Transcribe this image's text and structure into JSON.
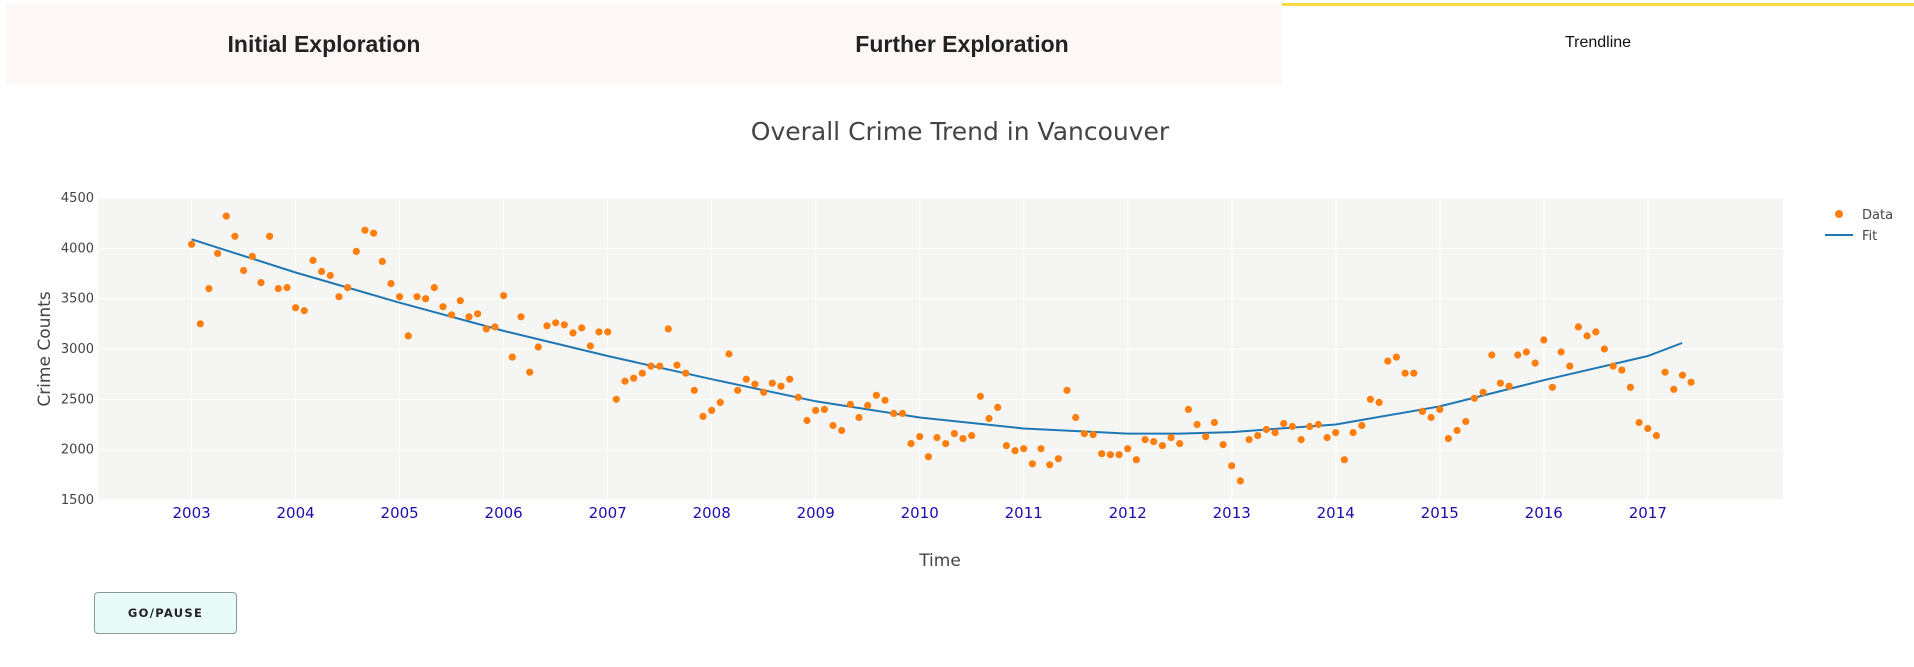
{
  "tabs": [
    {
      "label": "Initial Exploration",
      "active": false
    },
    {
      "label": "Further Exploration",
      "active": false
    },
    {
      "label": "Trendline",
      "active": true
    }
  ],
  "controls": {
    "go_pause_label": "GO/PAUSE"
  },
  "colors": {
    "data": "#ff7f0e",
    "fit": "#1f77b4",
    "active_tab_accent": "#f7d940",
    "year_ticks": "#1a0dab"
  },
  "chart_data": {
    "type": "scatter",
    "title": "Overall Crime Trend in Vancouver",
    "xlabel": "Time",
    "ylabel": "Crime Counts",
    "xlim": [
      2002.1,
      2018.3
    ],
    "ylim": [
      1500,
      4500
    ],
    "xticks": [
      "2003",
      "2004",
      "2005",
      "2006",
      "2007",
      "2008",
      "2009",
      "2010",
      "2011",
      "2012",
      "2013",
      "2014",
      "2015",
      "2016",
      "2017"
    ],
    "yticks": [
      1500,
      2000,
      2500,
      3000,
      3500,
      4000,
      4500
    ],
    "grid": true,
    "legend": "top-right",
    "series": [
      {
        "name": "Data",
        "mode": "markers",
        "x_start": "2003-01",
        "frequency": "monthly",
        "y": [
          4040,
          3250,
          3600,
          3950,
          4320,
          4120,
          3780,
          3920,
          3660,
          4120,
          3600,
          3610,
          3410,
          3380,
          3880,
          3770,
          3730,
          3520,
          3610,
          3970,
          4180,
          4150,
          3870,
          3650,
          3520,
          3130,
          3520,
          3500,
          3610,
          3420,
          3340,
          3480,
          3320,
          3350,
          3200,
          3220,
          3530,
          2920,
          3320,
          2770,
          3020,
          3230,
          3260,
          3240,
          3160,
          3210,
          3030,
          3170,
          3170,
          2500,
          2680,
          2710,
          2760,
          2830,
          2830,
          3200,
          2840,
          2760,
          2590,
          2330,
          2390,
          2470,
          2950,
          2590,
          2700,
          2650,
          2570,
          2660,
          2630,
          2700,
          2520,
          2290,
          2390,
          2400,
          2240,
          2190,
          2450,
          2320,
          2440,
          2540,
          2490,
          2360,
          2360,
          2060,
          2130,
          1930,
          2120,
          2060,
          2160,
          2110,
          2140,
          2530,
          2310,
          2420,
          2040,
          1990,
          2010,
          1860,
          2010,
          1850,
          1910,
          2590,
          2320,
          2160,
          2150,
          1960,
          1950,
          1950,
          2010,
          1900,
          2100,
          2080,
          2040,
          2120,
          2060,
          2400,
          2250,
          2130,
          2270,
          2050,
          1840,
          1690,
          2100,
          2140,
          2200,
          2170,
          2260,
          2230,
          2100,
          2230,
          2250,
          2120,
          2170,
          1900,
          2170,
          2240,
          2500,
          2470,
          2880,
          2920,
          2760,
          2760,
          2380,
          2320,
          2400,
          2110,
          2190,
          2280,
          2510,
          2570,
          2940,
          2660,
          2630,
          2940,
          2970,
          2860,
          3090,
          2620,
          2970,
          2830,
          3220,
          3130,
          3170,
          3000,
          2830,
          2790,
          2620,
          2270,
          2210,
          2140,
          2770,
          2600,
          2740,
          2670
        ]
      },
      {
        "name": "Fit",
        "mode": "line",
        "x": [
          2003.0,
          2004.0,
          2005.0,
          2006.0,
          2007.0,
          2008.0,
          2009.0,
          2010.0,
          2011.0,
          2012.0,
          2012.5,
          2013.0,
          2014.0,
          2015.0,
          2016.0,
          2017.0,
          2017.33
        ],
        "y": [
          4090,
          3760,
          3460,
          3180,
          2930,
          2700,
          2480,
          2320,
          2210,
          2160,
          2160,
          2175,
          2250,
          2430,
          2690,
          2930,
          3060
        ]
      }
    ]
  }
}
